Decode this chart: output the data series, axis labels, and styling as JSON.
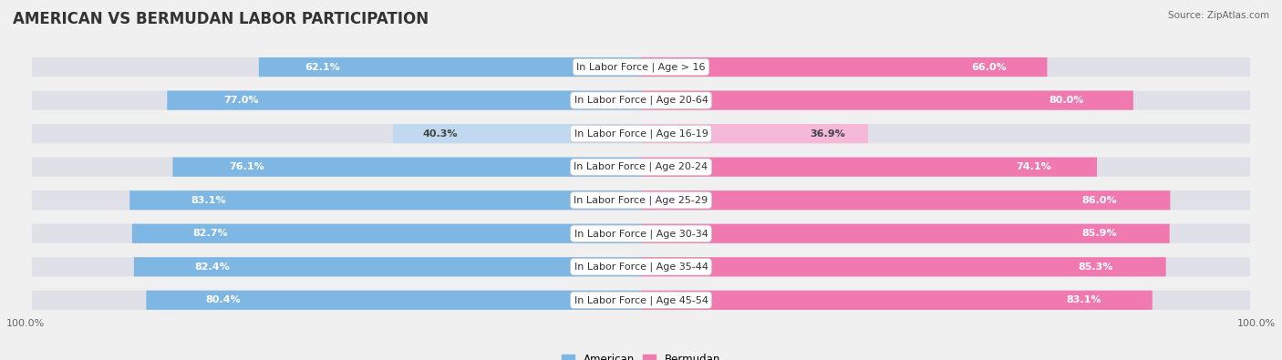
{
  "title": "AMERICAN VS BERMUDAN LABOR PARTICIPATION",
  "source": "Source: ZipAtlas.com",
  "categories": [
    "In Labor Force | Age > 16",
    "In Labor Force | Age 20-64",
    "In Labor Force | Age 16-19",
    "In Labor Force | Age 20-24",
    "In Labor Force | Age 25-29",
    "In Labor Force | Age 30-34",
    "In Labor Force | Age 35-44",
    "In Labor Force | Age 45-54"
  ],
  "american_values": [
    62.1,
    77.0,
    40.3,
    76.1,
    83.1,
    82.7,
    82.4,
    80.4
  ],
  "bermudan_values": [
    66.0,
    80.0,
    36.9,
    74.1,
    86.0,
    85.9,
    85.3,
    83.1
  ],
  "american_color": "#7EB6E4",
  "bermudan_color": "#F07AB0",
  "american_color_light": "#C0D8F0",
  "bermudan_color_light": "#F5B8D8",
  "track_color": "#E0E0E8",
  "background_color": "#f0f0f0",
  "row_bg_odd": "#e8e8ee",
  "row_bg_even": "#f5f5f8",
  "bar_height": 0.58,
  "max_value": 100.0,
  "legend_american": "American",
  "legend_bermudan": "Bermudan",
  "title_fontsize": 12,
  "label_fontsize": 8,
  "value_fontsize": 8,
  "axis_fontsize": 8,
  "threshold_light": 55
}
